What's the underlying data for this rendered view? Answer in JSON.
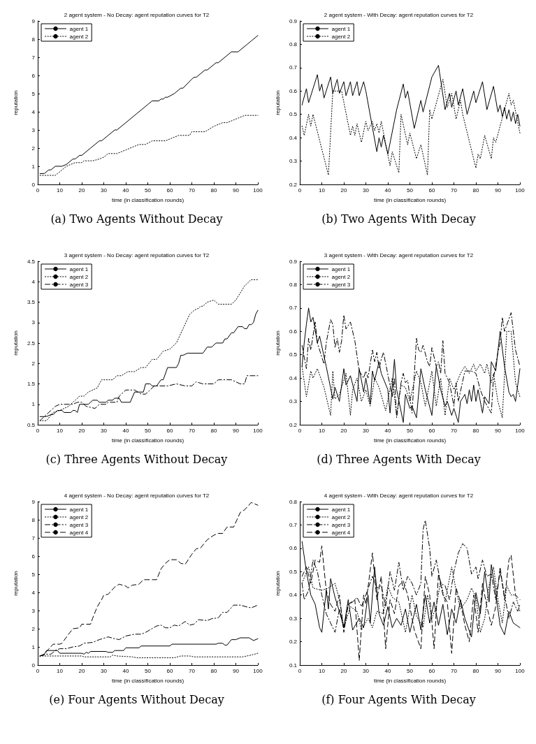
{
  "chart_data": [
    {
      "type": "line",
      "title": "2 agent system - No Decay: agent reputation curves for T2",
      "xlabel": "time (in classification rounds)",
      "ylabel": "reputation",
      "annotations": [
        "(a) Two Agents Without Decay"
      ],
      "xlim": [
        0,
        100
      ],
      "xticks": [
        0,
        10,
        20,
        30,
        40,
        50,
        60,
        70,
        80,
        90,
        100
      ],
      "ylim": [
        0,
        9
      ],
      "yticks": [
        0,
        1,
        2,
        3,
        4,
        5,
        6,
        7,
        8,
        9
      ],
      "grid": false,
      "legend": "top left",
      "marker": "none",
      "series": [
        {
          "name": "agent 1",
          "color": "#000000",
          "line_style": "solid",
          "x": [
            1,
            3,
            5,
            6,
            8,
            11,
            13,
            16,
            17,
            19,
            20,
            24,
            28,
            29,
            35,
            36,
            40,
            45,
            50,
            52,
            55,
            56,
            57,
            58,
            59,
            62,
            65,
            66,
            70,
            71,
            72,
            76,
            77,
            81,
            82,
            88,
            91,
            95,
            97,
            100
          ],
          "values": [
            0.6,
            0.6,
            0.8,
            0.8,
            1.0,
            1.0,
            1.1,
            1.4,
            1.4,
            1.6,
            1.6,
            2.0,
            2.4,
            2.4,
            3.0,
            3.0,
            3.4,
            3.9,
            4.4,
            4.6,
            4.6,
            4.7,
            4.7,
            4.8,
            4.8,
            5.0,
            5.3,
            5.3,
            5.8,
            5.9,
            5.9,
            6.3,
            6.3,
            6.7,
            6.7,
            7.3,
            7.3,
            7.7,
            7.9,
            8.2
          ]
        },
        {
          "name": "agent 2",
          "color": "#000000",
          "line_style": "dotted",
          "x": [
            1,
            8,
            11,
            13,
            17,
            20,
            21,
            25,
            28,
            30,
            32,
            36,
            40,
            42,
            46,
            49,
            52,
            58,
            62,
            64,
            69,
            70,
            76,
            80,
            84,
            86,
            90,
            92,
            94,
            100
          ],
          "values": [
            0.5,
            0.5,
            0.8,
            1.0,
            1.2,
            1.2,
            1.3,
            1.3,
            1.4,
            1.5,
            1.7,
            1.7,
            1.9,
            2.0,
            2.2,
            2.2,
            2.4,
            2.4,
            2.6,
            2.7,
            2.7,
            2.9,
            2.9,
            3.2,
            3.4,
            3.4,
            3.6,
            3.7,
            3.8,
            3.8
          ]
        }
      ]
    },
    {
      "type": "line",
      "title": "2 agent system - With Decay: agent reputation curves for T2",
      "xlabel": "time (in classification rounds)",
      "ylabel": "reputation",
      "annotations": [
        "(b) Two Agents With Decay"
      ],
      "xlim": [
        0,
        100
      ],
      "xticks": [
        0,
        10,
        20,
        30,
        40,
        50,
        60,
        70,
        80,
        90,
        100
      ],
      "ylim": [
        0.2,
        0.9
      ],
      "yticks": [
        0.2,
        0.3,
        0.4,
        0.5,
        0.6,
        0.7,
        0.8,
        0.9
      ],
      "grid": false,
      "legend": "top left",
      "marker": "none",
      "series": [
        {
          "name": "agent 1",
          "color": "#000000",
          "line_style": "solid",
          "x": [
            1,
            3,
            4,
            8,
            9,
            10,
            11,
            14,
            15,
            17,
            18,
            20,
            21,
            23,
            24,
            26,
            27,
            29,
            30,
            35,
            36,
            37,
            38,
            40,
            44,
            47,
            48,
            49,
            52,
            55,
            56,
            60,
            63,
            66,
            68,
            69,
            71,
            72,
            74,
            76,
            79,
            80,
            83,
            85,
            88,
            90,
            91,
            92,
            93,
            94,
            95,
            96,
            97,
            98,
            99,
            100
          ],
          "values": [
            0.54,
            0.61,
            0.55,
            0.67,
            0.6,
            0.63,
            0.57,
            0.66,
            0.59,
            0.65,
            0.59,
            0.64,
            0.58,
            0.64,
            0.58,
            0.64,
            0.58,
            0.64,
            0.6,
            0.34,
            0.4,
            0.36,
            0.41,
            0.33,
            0.52,
            0.63,
            0.57,
            0.6,
            0.44,
            0.56,
            0.51,
            0.66,
            0.71,
            0.52,
            0.59,
            0.53,
            0.6,
            0.54,
            0.61,
            0.5,
            0.6,
            0.55,
            0.64,
            0.52,
            0.62,
            0.51,
            0.54,
            0.49,
            0.53,
            0.48,
            0.52,
            0.47,
            0.51,
            0.46,
            0.5,
            0.45
          ]
        },
        {
          "name": "agent 2",
          "color": "#000000",
          "line_style": "dotted",
          "x": [
            1,
            2,
            4,
            5,
            6,
            13,
            15,
            19,
            23,
            24,
            25,
            26,
            28,
            30,
            31,
            33,
            34,
            35,
            36,
            37,
            41,
            42,
            45,
            46,
            49,
            50,
            53,
            55,
            58,
            59,
            60,
            65,
            67,
            69,
            71,
            73,
            74,
            80,
            81,
            82,
            84,
            87,
            88,
            89,
            95,
            96,
            97,
            100
          ],
          "values": [
            0.45,
            0.41,
            0.5,
            0.45,
            0.5,
            0.24,
            0.6,
            0.6,
            0.41,
            0.45,
            0.41,
            0.46,
            0.38,
            0.47,
            0.43,
            0.47,
            0.43,
            0.46,
            0.42,
            0.47,
            0.28,
            0.34,
            0.25,
            0.5,
            0.37,
            0.42,
            0.31,
            0.37,
            0.24,
            0.52,
            0.48,
            0.65,
            0.53,
            0.59,
            0.48,
            0.56,
            0.5,
            0.27,
            0.33,
            0.31,
            0.41,
            0.31,
            0.4,
            0.38,
            0.59,
            0.54,
            0.56,
            0.42
          ]
        }
      ]
    },
    {
      "type": "line",
      "title": "3 agent system - No Decay: agent reputation curves for T2",
      "xlabel": "time (in classification rounds)",
      "ylabel": "reputation",
      "annotations": [
        "(c) Three Agents Without Decay"
      ],
      "xlim": [
        0,
        100
      ],
      "xticks": [
        0,
        10,
        20,
        30,
        40,
        50,
        60,
        70,
        80,
        90,
        100
      ],
      "ylim": [
        0.5,
        4.5
      ],
      "yticks": [
        0.5,
        1,
        1.5,
        2,
        2.5,
        3,
        3.5,
        4,
        4.5
      ],
      "grid": false,
      "legend": "top left",
      "marker": "none",
      "series": [
        {
          "name": "agent 1",
          "color": "#000000",
          "line_style": "solid",
          "x": [
            1,
            4,
            6,
            7,
            9,
            11,
            12,
            15,
            16,
            17,
            18,
            19,
            20,
            23,
            25,
            27,
            28,
            31,
            32,
            34,
            35,
            37,
            38,
            42,
            44,
            48,
            49,
            51,
            52,
            54,
            56,
            57,
            59,
            63,
            64,
            65,
            66,
            68,
            75,
            77,
            79,
            81,
            84,
            85,
            86,
            88,
            89,
            91,
            93,
            94,
            95,
            96,
            97,
            98,
            99,
            100
          ],
          "values": [
            0.7,
            0.7,
            0.75,
            0.75,
            0.85,
            0.85,
            0.8,
            0.8,
            0.85,
            0.85,
            0.8,
            1.0,
            1.0,
            1.0,
            1.1,
            1.1,
            1.05,
            1.05,
            1.1,
            1.1,
            1.15,
            1.15,
            1.05,
            1.05,
            1.3,
            1.3,
            1.5,
            1.5,
            1.45,
            1.45,
            1.6,
            1.6,
            1.9,
            1.9,
            2.0,
            2.2,
            2.2,
            2.25,
            2.25,
            2.4,
            2.4,
            2.5,
            2.5,
            2.6,
            2.6,
            2.75,
            2.75,
            2.9,
            2.9,
            2.85,
            2.85,
            2.95,
            2.95,
            3.0,
            3.2,
            3.3
          ]
        },
        {
          "name": "agent 2",
          "color": "#000000",
          "line_style": "dotted",
          "x": [
            1,
            4,
            7,
            10,
            14,
            17,
            19,
            21,
            23,
            27,
            29,
            34,
            36,
            38,
            41,
            44,
            47,
            49,
            52,
            54,
            57,
            60,
            63,
            66,
            69,
            71,
            73,
            74,
            75,
            77,
            80,
            82,
            88,
            90,
            94,
            97,
            100
          ],
          "values": [
            0.6,
            0.6,
            0.8,
            0.85,
            0.95,
            1.1,
            1.2,
            1.2,
            1.3,
            1.4,
            1.6,
            1.6,
            1.7,
            1.7,
            1.8,
            1.8,
            1.9,
            1.9,
            2.1,
            2.1,
            2.3,
            2.35,
            2.5,
            2.85,
            3.2,
            3.3,
            3.35,
            3.4,
            3.4,
            3.5,
            3.55,
            3.45,
            3.45,
            3.55,
            3.9,
            4.05,
            4.05
          ]
        },
        {
          "name": "agent 3",
          "color": "#000000",
          "line_style": "dashdot",
          "x": [
            1,
            3,
            6,
            8,
            10,
            13,
            16,
            18,
            20,
            22,
            26,
            28,
            31,
            32,
            36,
            37,
            39,
            40,
            44,
            47,
            49,
            51,
            53,
            59,
            63,
            67,
            70,
            72,
            75,
            80,
            82,
            88,
            92,
            94,
            95,
            100
          ],
          "values": [
            0.6,
            0.7,
            0.85,
            0.95,
            1.0,
            1.0,
            1.0,
            1.05,
            1.05,
            0.95,
            0.9,
            1.0,
            1.0,
            1.05,
            1.05,
            1.2,
            1.3,
            1.35,
            1.35,
            1.25,
            1.25,
            1.35,
            1.45,
            1.45,
            1.5,
            1.45,
            1.45,
            1.55,
            1.5,
            1.5,
            1.6,
            1.6,
            1.5,
            1.5,
            1.7,
            1.7
          ]
        }
      ]
    },
    {
      "type": "line",
      "title": "3 agent system - With Decay: agent reputation curves for T2",
      "xlabel": "time (in classification rounds)",
      "ylabel": "reputation",
      "annotations": [
        "(d) Three Agents With Decay"
      ],
      "xlim": [
        0,
        100
      ],
      "xticks": [
        0,
        10,
        20,
        30,
        40,
        50,
        60,
        70,
        80,
        90,
        100
      ],
      "ylim": [
        0.2,
        0.9
      ],
      "yticks": [
        0.2,
        0.3,
        0.4,
        0.5,
        0.6,
        0.7,
        0.8,
        0.9
      ],
      "grid": false,
      "legend": "top left",
      "marker": "none",
      "series": [
        {
          "name": "agent 1",
          "color": "#000000",
          "line_style": "solid",
          "x": [
            1,
            2,
            3,
            4,
            5,
            6,
            8,
            9,
            12,
            15,
            16,
            18,
            20,
            21,
            23,
            26,
            27,
            29,
            30,
            32,
            33,
            34,
            36,
            37,
            40,
            41,
            43,
            44,
            47,
            48,
            50,
            51,
            53,
            55,
            57,
            60,
            62,
            64,
            66,
            67,
            69,
            70,
            72,
            73,
            75,
            76,
            77,
            78,
            79,
            80,
            81,
            83,
            84,
            86,
            87,
            89,
            91,
            93,
            95,
            96,
            97,
            98,
            100
          ],
          "values": [
            0.45,
            0.55,
            0.63,
            0.7,
            0.64,
            0.66,
            0.55,
            0.58,
            0.45,
            0.31,
            0.36,
            0.3,
            0.44,
            0.37,
            0.41,
            0.3,
            0.44,
            0.34,
            0.4,
            0.29,
            0.43,
            0.39,
            0.47,
            0.42,
            0.35,
            0.25,
            0.48,
            0.35,
            0.21,
            0.33,
            0.27,
            0.28,
            0.23,
            0.44,
            0.35,
            0.24,
            0.45,
            0.35,
            0.28,
            0.3,
            0.24,
            0.27,
            0.21,
            0.3,
            0.33,
            0.29,
            0.35,
            0.3,
            0.37,
            0.3,
            0.35,
            0.25,
            0.32,
            0.29,
            0.47,
            0.43,
            0.6,
            0.45,
            0.34,
            0.32,
            0.33,
            0.3,
            0.44
          ]
        },
        {
          "name": "agent 2",
          "color": "#000000",
          "line_style": "dotted",
          "x": [
            1,
            3,
            5,
            6,
            8,
            11,
            14,
            15,
            16,
            18,
            21,
            23,
            24,
            26,
            28,
            30,
            32,
            34,
            36,
            39,
            42,
            44,
            46,
            48,
            50,
            53,
            55,
            57,
            60,
            62,
            64,
            66,
            68,
            70,
            73,
            75,
            77,
            79,
            80,
            82,
            84,
            85,
            87,
            88,
            90,
            92,
            94,
            96,
            98,
            100
          ],
          "values": [
            0.45,
            0.32,
            0.43,
            0.4,
            0.44,
            0.36,
            0.24,
            0.43,
            0.31,
            0.33,
            0.42,
            0.24,
            0.35,
            0.4,
            0.3,
            0.35,
            0.28,
            0.4,
            0.36,
            0.26,
            0.4,
            0.24,
            0.37,
            0.36,
            0.3,
            0.43,
            0.38,
            0.28,
            0.43,
            0.28,
            0.4,
            0.24,
            0.4,
            0.35,
            0.42,
            0.45,
            0.42,
            0.46,
            0.43,
            0.46,
            0.42,
            0.46,
            0.38,
            0.42,
            0.3,
            0.23,
            0.6,
            0.6,
            0.38,
            0.32
          ]
        },
        {
          "name": "agent 3",
          "color": "#000000",
          "line_style": "dashdot",
          "x": [
            1,
            3,
            4,
            5,
            7,
            8,
            11,
            12,
            14,
            15,
            16,
            17,
            18,
            19,
            20,
            21,
            23,
            25,
            27,
            29,
            30,
            31,
            33,
            34,
            35,
            36,
            37,
            38,
            42,
            43,
            44,
            46,
            47,
            48,
            49,
            51,
            53,
            54,
            55,
            56,
            58,
            59,
            60,
            62,
            63,
            64,
            65,
            66,
            68,
            70,
            71,
            72,
            75,
            78,
            80,
            82,
            84,
            87,
            88,
            90,
            91,
            92,
            93,
            96,
            98,
            100
          ],
          "values": [
            0.54,
            0.44,
            0.57,
            0.52,
            0.64,
            0.55,
            0.46,
            0.55,
            0.65,
            0.63,
            0.53,
            0.57,
            0.51,
            0.56,
            0.67,
            0.61,
            0.64,
            0.56,
            0.43,
            0.4,
            0.43,
            0.4,
            0.52,
            0.47,
            0.51,
            0.44,
            0.48,
            0.51,
            0.32,
            0.4,
            0.23,
            0.38,
            0.42,
            0.38,
            0.39,
            0.25,
            0.57,
            0.52,
            0.51,
            0.54,
            0.47,
            0.45,
            0.53,
            0.45,
            0.47,
            0.42,
            0.56,
            0.42,
            0.38,
            0.28,
            0.38,
            0.3,
            0.43,
            0.43,
            0.42,
            0.35,
            0.3,
            0.25,
            0.4,
            0.51,
            0.55,
            0.66,
            0.6,
            0.68,
            0.52,
            0.45
          ]
        }
      ]
    },
    {
      "type": "line",
      "title": "4 agent system - No Decay: agent reputation curves for T2",
      "xlabel": "time (in classification rounds)",
      "ylabel": "reputation",
      "annotations": [
        "(e) Four Agents Without Decay"
      ],
      "xlim": [
        0,
        100
      ],
      "xticks": [
        0,
        10,
        20,
        30,
        40,
        50,
        60,
        70,
        80,
        90,
        100
      ],
      "ylim": [
        0,
        9
      ],
      "yticks": [
        0,
        1,
        2,
        3,
        4,
        5,
        6,
        7,
        8,
        9
      ],
      "grid": false,
      "legend": "top left",
      "marker": "none",
      "series": [
        {
          "name": "agent 1",
          "color": "#000000",
          "line_style": "solid",
          "x": [
            1,
            3,
            4,
            9,
            10,
            20,
            21,
            22,
            23,
            24,
            31,
            32,
            34,
            35,
            39,
            40,
            46,
            47,
            60,
            61,
            81,
            82,
            84,
            85,
            86,
            88,
            90,
            92,
            96,
            98,
            100
          ],
          "values": [
            0.5,
            0.6,
            0.8,
            0.8,
            0.65,
            0.65,
            0.6,
            0.7,
            0.65,
            0.75,
            0.75,
            0.7,
            0.7,
            0.8,
            0.8,
            0.95,
            0.95,
            1.05,
            1.05,
            1.15,
            1.15,
            1.2,
            1.2,
            1.1,
            1.1,
            1.4,
            1.4,
            1.5,
            1.5,
            1.35,
            1.45
          ]
        },
        {
          "name": "agent 2",
          "color": "#000000",
          "line_style": "dotted",
          "x": [
            1,
            20,
            21,
            33,
            34,
            36,
            43,
            45,
            62,
            65,
            69,
            71,
            93,
            97,
            100
          ],
          "values": [
            0.5,
            0.5,
            0.45,
            0.45,
            0.55,
            0.5,
            0.45,
            0.4,
            0.4,
            0.5,
            0.5,
            0.45,
            0.45,
            0.55,
            0.65
          ]
        },
        {
          "name": "agent 3",
          "color": "#000000",
          "line_style": "dashdot",
          "x": [
            1,
            3,
            6,
            8,
            10,
            13,
            16,
            19,
            21,
            25,
            28,
            32,
            35,
            37,
            40,
            44,
            47,
            49,
            54,
            56,
            58,
            60,
            62,
            64,
            67,
            69,
            71,
            73,
            77,
            79,
            82,
            84,
            86,
            89,
            92,
            95,
            97,
            100
          ],
          "values": [
            0.5,
            0.6,
            0.6,
            0.8,
            0.9,
            0.9,
            1.0,
            1.05,
            1.2,
            1.25,
            1.4,
            1.55,
            1.45,
            1.4,
            1.6,
            1.7,
            1.7,
            1.8,
            2.15,
            2.2,
            2.05,
            2.05,
            2.2,
            2.15,
            2.4,
            2.2,
            2.25,
            2.5,
            2.45,
            2.55,
            2.6,
            2.9,
            2.9,
            3.3,
            3.3,
            3.2,
            3.15,
            3.3
          ]
        },
        {
          "name": "agent 4",
          "color": "#000000",
          "line_style": "dashed",
          "x": [
            1,
            3,
            4,
            7,
            10,
            11,
            14,
            16,
            19,
            20,
            24,
            25,
            27,
            29,
            30,
            32,
            35,
            37,
            40,
            41,
            43,
            46,
            48,
            54,
            56,
            58,
            60,
            63,
            65,
            67,
            70,
            72,
            74,
            77,
            80,
            82,
            84,
            86,
            89,
            92,
            94,
            97,
            100
          ],
          "values": [
            0.5,
            0.55,
            0.75,
            1.15,
            1.15,
            1.2,
            1.7,
            2.0,
            2.05,
            2.25,
            2.25,
            2.6,
            3.2,
            3.6,
            3.85,
            3.9,
            4.3,
            4.45,
            4.35,
            4.25,
            4.4,
            4.45,
            4.7,
            4.7,
            5.3,
            5.6,
            5.8,
            5.8,
            5.6,
            5.55,
            6.1,
            6.4,
            6.45,
            6.9,
            7.15,
            7.25,
            7.25,
            7.6,
            7.6,
            8.4,
            8.55,
            8.95,
            8.8
          ]
        }
      ]
    },
    {
      "type": "line",
      "title": "4 agent system - With Decay: agent reputation curves for T2",
      "xlabel": "time (in classification rounds)",
      "ylabel": "reputation",
      "annotations": [
        "(f) Four Agents With Decay"
      ],
      "xlim": [
        0,
        100
      ],
      "xticks": [
        0,
        10,
        20,
        30,
        40,
        50,
        60,
        70,
        80,
        90,
        100
      ],
      "ylim": [
        0.1,
        0.8
      ],
      "yticks": [
        0.1,
        0.2,
        0.3,
        0.4,
        0.5,
        0.6,
        0.7,
        0.8
      ],
      "grid": false,
      "legend": "top left",
      "marker": "none",
      "series": [
        {
          "name": "agent 1",
          "color": "#000000",
          "line_style": "solid",
          "x": [
            1,
            3,
            5,
            7,
            9,
            10,
            12,
            13,
            14,
            16,
            18,
            20,
            22,
            24,
            27,
            29,
            31,
            32,
            34,
            36,
            38,
            40,
            42,
            44,
            46,
            48,
            50,
            53,
            55,
            57,
            59,
            61,
            63,
            65,
            67,
            69,
            71,
            73,
            75,
            78,
            80,
            82,
            84,
            86,
            87,
            89,
            91,
            93,
            95,
            97,
            100
          ],
          "values": [
            0.63,
            0.5,
            0.4,
            0.36,
            0.26,
            0.24,
            0.42,
            0.34,
            0.47,
            0.39,
            0.33,
            0.26,
            0.38,
            0.25,
            0.3,
            0.26,
            0.4,
            0.28,
            0.52,
            0.32,
            0.27,
            0.35,
            0.26,
            0.3,
            0.27,
            0.34,
            0.24,
            0.36,
            0.25,
            0.4,
            0.28,
            0.37,
            0.27,
            0.36,
            0.23,
            0.34,
            0.28,
            0.38,
            0.3,
            0.22,
            0.41,
            0.32,
            0.5,
            0.37,
            0.53,
            0.41,
            0.27,
            0.23,
            0.33,
            0.28,
            0.26
          ]
        },
        {
          "name": "agent 2",
          "color": "#000000",
          "line_style": "dotted",
          "x": [
            1,
            4,
            6,
            10,
            13,
            16,
            18,
            20,
            23,
            26,
            28,
            31,
            33,
            35,
            38,
            40,
            42,
            45,
            48,
            51,
            53,
            56,
            58,
            60,
            62,
            64,
            66,
            69,
            71,
            73,
            76,
            78,
            80,
            82,
            84,
            86,
            88,
            90,
            92,
            94,
            96,
            98,
            100
          ],
          "values": [
            0.45,
            0.52,
            0.43,
            0.42,
            0.43,
            0.45,
            0.38,
            0.26,
            0.35,
            0.33,
            0.25,
            0.3,
            0.26,
            0.33,
            0.32,
            0.44,
            0.39,
            0.37,
            0.24,
            0.4,
            0.31,
            0.26,
            0.4,
            0.3,
            0.35,
            0.46,
            0.37,
            0.52,
            0.42,
            0.34,
            0.38,
            0.43,
            0.39,
            0.24,
            0.3,
            0.44,
            0.52,
            0.38,
            0.28,
            0.44,
            0.4,
            0.4,
            0.33
          ]
        },
        {
          "name": "agent 3",
          "color": "#000000",
          "line_style": "dashdot",
          "x": [
            1,
            2,
            4,
            6,
            8,
            10,
            12,
            14,
            16,
            18,
            20,
            22,
            24,
            26,
            28,
            30,
            33,
            35,
            37,
            39,
            41,
            43,
            45,
            47,
            49,
            51,
            53,
            55,
            56,
            57,
            59,
            60,
            62,
            64,
            66,
            68,
            70,
            72,
            74,
            76,
            78,
            80,
            81,
            83,
            85,
            87,
            89,
            91,
            93,
            95,
            97,
            99,
            100
          ],
          "values": [
            0.45,
            0.38,
            0.42,
            0.55,
            0.5,
            0.4,
            0.32,
            0.28,
            0.24,
            0.34,
            0.26,
            0.36,
            0.37,
            0.39,
            0.35,
            0.4,
            0.48,
            0.43,
            0.44,
            0.35,
            0.5,
            0.42,
            0.54,
            0.42,
            0.48,
            0.45,
            0.4,
            0.45,
            0.68,
            0.72,
            0.6,
            0.48,
            0.55,
            0.45,
            0.44,
            0.38,
            0.5,
            0.58,
            0.62,
            0.6,
            0.49,
            0.52,
            0.47,
            0.55,
            0.48,
            0.49,
            0.38,
            0.5,
            0.4,
            0.3,
            0.37,
            0.33,
            0.36
          ]
        },
        {
          "name": "agent 4",
          "color": "#000000",
          "line_style": "dashed",
          "x": [
            1,
            3,
            5,
            7,
            9,
            10,
            12,
            14,
            16,
            18,
            20,
            22,
            25,
            27,
            29,
            30,
            33,
            35,
            37,
            39,
            41,
            43,
            45,
            47,
            49,
            52,
            55,
            57,
            59,
            61,
            63,
            65,
            67,
            69,
            71,
            73,
            75,
            77,
            79,
            81,
            83,
            85,
            87,
            89,
            91,
            93,
            95,
            96,
            98,
            100
          ],
          "values": [
            0.48,
            0.52,
            0.45,
            0.55,
            0.54,
            0.61,
            0.42,
            0.36,
            0.33,
            0.4,
            0.24,
            0.36,
            0.38,
            0.12,
            0.4,
            0.36,
            0.58,
            0.38,
            0.48,
            0.17,
            0.38,
            0.32,
            0.44,
            0.46,
            0.4,
            0.25,
            0.17,
            0.48,
            0.4,
            0.17,
            0.49,
            0.4,
            0.37,
            0.15,
            0.43,
            0.37,
            0.27,
            0.2,
            0.4,
            0.24,
            0.45,
            0.35,
            0.27,
            0.35,
            0.52,
            0.38,
            0.55,
            0.57,
            0.4,
            0.38
          ]
        }
      ]
    }
  ]
}
